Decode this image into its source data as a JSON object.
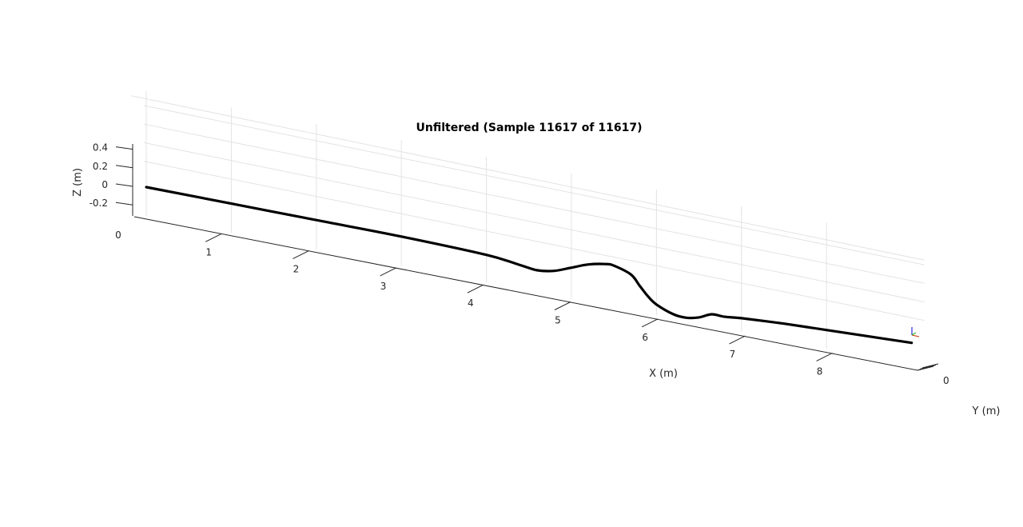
{
  "chart_data": {
    "type": "line",
    "title": "Unfiltered (Sample 11617 of 11617)",
    "xlabel": "X (m)",
    "ylabel": "Y (m)",
    "zlabel": "Z (m)",
    "xlim": [
      0,
      9
    ],
    "zlim": [
      -0.3,
      0.45
    ],
    "x_ticks": [
      "0",
      "1",
      "2",
      "3",
      "4",
      "5",
      "6",
      "7",
      "8"
    ],
    "y_ticks": [
      "0"
    ],
    "z_ticks": [
      "0.4",
      "0.2",
      "0",
      "-0.2"
    ],
    "grid": true,
    "colors": {
      "trace": "#000000",
      "grid": "#e3e3e3",
      "axis": "#262626"
    },
    "series": [
      {
        "x": [
          0.0,
          1.0,
          2.0,
          3.0,
          4.0,
          4.4,
          4.6,
          4.8,
          5.0,
          5.2,
          5.4,
          5.5,
          5.7,
          5.8,
          5.9,
          6.0,
          6.2,
          6.35,
          6.5,
          6.65,
          6.8,
          7.0,
          7.5,
          8.0,
          8.5,
          9.0
        ],
        "z": [
          0.0,
          0.0,
          0.0,
          0.0,
          -0.02,
          -0.06,
          -0.08,
          -0.05,
          0.02,
          0.09,
          0.13,
          0.13,
          0.07,
          -0.03,
          -0.13,
          -0.2,
          -0.27,
          -0.28,
          -0.25,
          -0.19,
          -0.19,
          -0.17,
          -0.14,
          -0.12,
          -0.1,
          -0.08
        ]
      }
    ]
  }
}
